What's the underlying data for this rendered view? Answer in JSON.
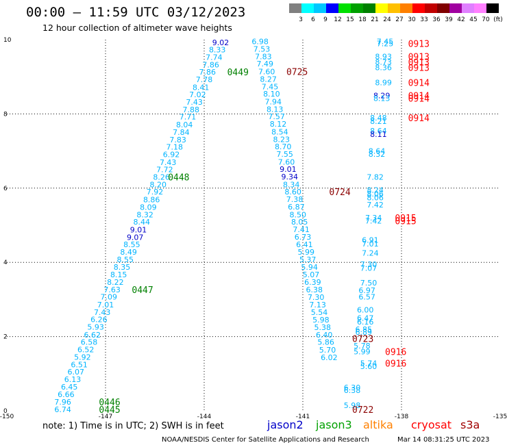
{
  "title": "00:00 – 11:59 UTC 03/12/2023",
  "subtitle": "12 hour collection of altimeter wave heights",
  "colorbar": {
    "labels": [
      "3",
      "6",
      "9",
      "12",
      "15",
      "18",
      "21",
      "24",
      "27",
      "30",
      "33",
      "36",
      "39",
      "42",
      "45",
      "70",
      "(ft)"
    ],
    "colors": [
      "#808080",
      "#00ffff",
      "#00c8ff",
      "#0000ff",
      "#00e000",
      "#00a000",
      "#008000",
      "#ffff00",
      "#ffc000",
      "#ff8000",
      "#ff0000",
      "#c00000",
      "#800000",
      "#a000a0",
      "#e080ff",
      "#ff80ff",
      "#000000"
    ]
  },
  "note": "note:  1) Time is in UTC; 2) SWH is in feet",
  "legend": [
    {
      "name": "jason2",
      "color": "#0000c8"
    },
    {
      "name": "jason3",
      "color": "#00a000"
    },
    {
      "name": "altika",
      "color": "#ff8000"
    },
    {
      "name": "cryosat",
      "color": "#ff0000"
    },
    {
      "name": "s3a",
      "color": "#a00000"
    }
  ],
  "credit_left": "NOAA/NESDIS Center for Satellite Applications and Research",
  "credit_right": "Mar 14 08:31:25 UTC 2023",
  "chart_data": {
    "type": "scatter",
    "xlim": [
      -150,
      -135
    ],
    "ylim": [
      0,
      10
    ],
    "xticks": [
      "-150",
      "-147",
      "-144",
      "-141",
      "-138",
      "-135"
    ],
    "xtick_values": [
      -150,
      -147,
      -144,
      -141,
      -138,
      -135
    ],
    "yticks": [
      "0",
      "2",
      "4",
      "6",
      "8",
      "10"
    ],
    "ytick_values": [
      0,
      2,
      4,
      6,
      8,
      10
    ],
    "grid": "dotted",
    "colors": {
      "c": "#00b4ff",
      "b": "#0000c8"
    },
    "points": [
      {
        "x": -148.3,
        "y": 0.04,
        "v": "6.74",
        "c": "c"
      },
      {
        "x": -148.3,
        "y": 0.24,
        "v": "7.96",
        "c": "c"
      },
      {
        "x": -148.2,
        "y": 0.44,
        "v": "6.66",
        "c": "c"
      },
      {
        "x": -148.1,
        "y": 0.65,
        "v": "6.45",
        "c": "c"
      },
      {
        "x": -148.0,
        "y": 0.85,
        "v": "6.13",
        "c": "c"
      },
      {
        "x": -147.9,
        "y": 1.05,
        "v": "6.07",
        "c": "c"
      },
      {
        "x": -147.8,
        "y": 1.25,
        "v": "6.51",
        "c": "c"
      },
      {
        "x": -147.7,
        "y": 1.45,
        "v": "5.92",
        "c": "c"
      },
      {
        "x": -147.6,
        "y": 1.65,
        "v": "6.52",
        "c": "c"
      },
      {
        "x": -147.5,
        "y": 1.85,
        "v": "6.58",
        "c": "c"
      },
      {
        "x": -147.4,
        "y": 2.05,
        "v": "6.62",
        "c": "c"
      },
      {
        "x": -147.3,
        "y": 2.26,
        "v": "5.93",
        "c": "c"
      },
      {
        "x": -147.2,
        "y": 2.46,
        "v": "6.26",
        "c": "c"
      },
      {
        "x": -147.1,
        "y": 2.66,
        "v": "7.43",
        "c": "c"
      },
      {
        "x": -147.0,
        "y": 2.86,
        "v": "7.01",
        "c": "c"
      },
      {
        "x": -146.9,
        "y": 3.07,
        "v": "7.09",
        "c": "c"
      },
      {
        "x": -146.8,
        "y": 3.27,
        "v": "7.63",
        "c": "c"
      },
      {
        "x": -146.7,
        "y": 3.47,
        "v": "8.22",
        "c": "c"
      },
      {
        "x": -146.6,
        "y": 3.67,
        "v": "8.15",
        "c": "c"
      },
      {
        "x": -146.5,
        "y": 3.87,
        "v": "8.35",
        "c": "c"
      },
      {
        "x": -146.4,
        "y": 4.08,
        "v": "8.55",
        "c": "c"
      },
      {
        "x": -146.3,
        "y": 4.28,
        "v": "8.49",
        "c": "c"
      },
      {
        "x": -146.2,
        "y": 4.48,
        "v": "8.55",
        "c": "c"
      },
      {
        "x": -146.1,
        "y": 4.68,
        "v": "9.07",
        "c": "b"
      },
      {
        "x": -146.0,
        "y": 4.88,
        "v": "9.01",
        "c": "b"
      },
      {
        "x": -145.9,
        "y": 5.09,
        "v": "8.44",
        "c": "c"
      },
      {
        "x": -145.8,
        "y": 5.29,
        "v": "8.32",
        "c": "c"
      },
      {
        "x": -145.7,
        "y": 5.49,
        "v": "8.09",
        "c": "c"
      },
      {
        "x": -145.6,
        "y": 5.69,
        "v": "8.86",
        "c": "c"
      },
      {
        "x": -145.5,
        "y": 5.9,
        "v": "7.92",
        "c": "c"
      },
      {
        "x": -145.4,
        "y": 6.1,
        "v": "8.20",
        "c": "c"
      },
      {
        "x": -145.3,
        "y": 6.3,
        "v": "8.26",
        "c": "c"
      },
      {
        "x": -145.2,
        "y": 6.5,
        "v": "7.72",
        "c": "c"
      },
      {
        "x": -145.1,
        "y": 6.7,
        "v": "7.43",
        "c": "c"
      },
      {
        "x": -145.0,
        "y": 6.91,
        "v": "6.92",
        "c": "c"
      },
      {
        "x": -144.9,
        "y": 7.11,
        "v": "7.18",
        "c": "c"
      },
      {
        "x": -144.8,
        "y": 7.31,
        "v": "7.83",
        "c": "c"
      },
      {
        "x": -144.7,
        "y": 7.51,
        "v": "7.84",
        "c": "c"
      },
      {
        "x": -144.6,
        "y": 7.71,
        "v": "8.04",
        "c": "c"
      },
      {
        "x": -144.5,
        "y": 7.92,
        "v": "7.71",
        "c": "c"
      },
      {
        "x": -144.4,
        "y": 8.12,
        "v": "7.88",
        "c": "c"
      },
      {
        "x": -144.3,
        "y": 8.32,
        "v": "7.43",
        "c": "c"
      },
      {
        "x": -144.2,
        "y": 8.52,
        "v": "7.02",
        "c": "c"
      },
      {
        "x": -144.1,
        "y": 8.72,
        "v": "8.41",
        "c": "c"
      },
      {
        "x": -144.0,
        "y": 8.93,
        "v": "7.78",
        "c": "c"
      },
      {
        "x": -143.9,
        "y": 9.13,
        "v": "7.86",
        "c": "c"
      },
      {
        "x": -143.8,
        "y": 9.33,
        "v": "7.86",
        "c": "c"
      },
      {
        "x": -143.7,
        "y": 9.53,
        "v": "7.74",
        "c": "c"
      },
      {
        "x": -143.6,
        "y": 9.73,
        "v": "8.33",
        "c": "c"
      },
      {
        "x": -143.5,
        "y": 9.93,
        "v": "9.02",
        "c": "b"
      },
      {
        "x": -142.3,
        "y": 9.95,
        "v": "6.98",
        "c": "c"
      },
      {
        "x": -142.25,
        "y": 9.75,
        "v": "7.53",
        "c": "c"
      },
      {
        "x": -142.2,
        "y": 9.55,
        "v": "7.83",
        "c": "c"
      },
      {
        "x": -142.15,
        "y": 9.35,
        "v": "7.49",
        "c": "c"
      },
      {
        "x": -142.1,
        "y": 9.14,
        "v": "7.60",
        "c": "c"
      },
      {
        "x": -142.05,
        "y": 8.94,
        "v": "8.27",
        "c": "c"
      },
      {
        "x": -142.0,
        "y": 8.74,
        "v": "7.45",
        "c": "c"
      },
      {
        "x": -141.95,
        "y": 8.54,
        "v": "8.10",
        "c": "c"
      },
      {
        "x": -141.9,
        "y": 8.33,
        "v": "7.94",
        "c": "c"
      },
      {
        "x": -141.85,
        "y": 8.13,
        "v": "8.13",
        "c": "c"
      },
      {
        "x": -141.8,
        "y": 7.93,
        "v": "7.57",
        "c": "c"
      },
      {
        "x": -141.75,
        "y": 7.73,
        "v": "8.12",
        "c": "c"
      },
      {
        "x": -141.7,
        "y": 7.52,
        "v": "8.54",
        "c": "c"
      },
      {
        "x": -141.65,
        "y": 7.32,
        "v": "8.23",
        "c": "c"
      },
      {
        "x": -141.6,
        "y": 7.12,
        "v": "8.70",
        "c": "c"
      },
      {
        "x": -141.55,
        "y": 6.92,
        "v": "7.55",
        "c": "c"
      },
      {
        "x": -141.5,
        "y": 6.71,
        "v": "7.60",
        "c": "c"
      },
      {
        "x": -141.45,
        "y": 6.51,
        "v": "9.01",
        "c": "b"
      },
      {
        "x": -141.4,
        "y": 6.31,
        "v": "9.34",
        "c": "b"
      },
      {
        "x": -141.35,
        "y": 6.1,
        "v": "8.34",
        "c": "c"
      },
      {
        "x": -141.3,
        "y": 5.9,
        "v": "8.60",
        "c": "c"
      },
      {
        "x": -141.25,
        "y": 5.7,
        "v": "7.38",
        "c": "c"
      },
      {
        "x": -141.2,
        "y": 5.5,
        "v": "6.87",
        "c": "c"
      },
      {
        "x": -141.15,
        "y": 5.29,
        "v": "8.50",
        "c": "c"
      },
      {
        "x": -141.1,
        "y": 5.09,
        "v": "8.05",
        "c": "c"
      },
      {
        "x": -141.05,
        "y": 4.89,
        "v": "7.41",
        "c": "c"
      },
      {
        "x": -141.0,
        "y": 4.69,
        "v": "6.73",
        "c": "c"
      },
      {
        "x": -140.95,
        "y": 4.48,
        "v": "6.41",
        "c": "c"
      },
      {
        "x": -140.9,
        "y": 4.28,
        "v": "5.99",
        "c": "c"
      },
      {
        "x": -140.85,
        "y": 4.08,
        "v": "5.37",
        "c": "c"
      },
      {
        "x": -140.8,
        "y": 3.87,
        "v": "5.94",
        "c": "c"
      },
      {
        "x": -140.75,
        "y": 3.67,
        "v": "5.07",
        "c": "c"
      },
      {
        "x": -140.7,
        "y": 3.47,
        "v": "6.39",
        "c": "c"
      },
      {
        "x": -140.65,
        "y": 3.27,
        "v": "6.38",
        "c": "c"
      },
      {
        "x": -140.6,
        "y": 3.06,
        "v": "7.30",
        "c": "c"
      },
      {
        "x": -140.55,
        "y": 2.86,
        "v": "7.13",
        "c": "c"
      },
      {
        "x": -140.5,
        "y": 2.66,
        "v": "5.54",
        "c": "c"
      },
      {
        "x": -140.45,
        "y": 2.45,
        "v": "5.98",
        "c": "c"
      },
      {
        "x": -140.4,
        "y": 2.25,
        "v": "5.38",
        "c": "c"
      },
      {
        "x": -140.35,
        "y": 2.05,
        "v": "6.40",
        "c": "c"
      },
      {
        "x": -140.3,
        "y": 1.85,
        "v": "5.86",
        "c": "c"
      },
      {
        "x": -140.25,
        "y": 1.64,
        "v": "5.70",
        "c": "c"
      },
      {
        "x": -140.2,
        "y": 1.44,
        "v": "6.02",
        "c": "c"
      },
      {
        "x": -138.5,
        "y": 9.95,
        "v": "7.45",
        "c": "c"
      },
      {
        "x": -138.5,
        "y": 9.9,
        "v": "7.25",
        "c": "c"
      },
      {
        "x": -138.55,
        "y": 9.55,
        "v": "8.93",
        "c": "c"
      },
      {
        "x": -138.55,
        "y": 9.4,
        "v": "8.73",
        "c": "c"
      },
      {
        "x": -138.55,
        "y": 9.25,
        "v": "8.36",
        "c": "c"
      },
      {
        "x": -138.55,
        "y": 8.85,
        "v": "8.99",
        "c": "c"
      },
      {
        "x": -138.6,
        "y": 8.5,
        "v": "8.29",
        "c": "b"
      },
      {
        "x": -138.6,
        "y": 8.42,
        "v": "8.13",
        "c": "c"
      },
      {
        "x": -138.7,
        "y": 7.9,
        "v": "8.48",
        "c": "c"
      },
      {
        "x": -138.7,
        "y": 7.8,
        "v": "8.21",
        "c": "c"
      },
      {
        "x": -138.7,
        "y": 7.55,
        "v": "8.64",
        "c": "c"
      },
      {
        "x": -138.7,
        "y": 7.45,
        "v": "8.11",
        "c": "b"
      },
      {
        "x": -138.75,
        "y": 7.0,
        "v": "8.64",
        "c": "c"
      },
      {
        "x": -138.75,
        "y": 6.92,
        "v": "8.32",
        "c": "c"
      },
      {
        "x": -138.8,
        "y": 6.3,
        "v": "7.82",
        "c": "c"
      },
      {
        "x": -138.8,
        "y": 5.95,
        "v": "8.24",
        "c": "c"
      },
      {
        "x": -138.8,
        "y": 5.85,
        "v": "8.06",
        "c": "c"
      },
      {
        "x": -138.8,
        "y": 5.75,
        "v": "8.06",
        "c": "c"
      },
      {
        "x": -138.8,
        "y": 5.55,
        "v": "7.42",
        "c": "c"
      },
      {
        "x": -138.85,
        "y": 5.2,
        "v": "7.34",
        "c": "c"
      },
      {
        "x": -138.85,
        "y": 5.12,
        "v": "7.42",
        "c": "c"
      },
      {
        "x": -138.95,
        "y": 4.6,
        "v": "6.91",
        "c": "c"
      },
      {
        "x": -138.95,
        "y": 4.5,
        "v": "7.01",
        "c": "c"
      },
      {
        "x": -138.95,
        "y": 4.25,
        "v": "7.24",
        "c": "c"
      },
      {
        "x": -139.0,
        "y": 3.95,
        "v": "7.30",
        "c": "c"
      },
      {
        "x": -139.0,
        "y": 3.85,
        "v": "7.07",
        "c": "c"
      },
      {
        "x": -139.0,
        "y": 3.45,
        "v": "7.50",
        "c": "c"
      },
      {
        "x": -139.05,
        "y": 3.25,
        "v": "6.97",
        "c": "c"
      },
      {
        "x": -139.05,
        "y": 3.07,
        "v": "6.57",
        "c": "c"
      },
      {
        "x": -139.1,
        "y": 2.72,
        "v": "6.00",
        "c": "c"
      },
      {
        "x": -139.1,
        "y": 2.5,
        "v": "6.47",
        "c": "c"
      },
      {
        "x": -139.1,
        "y": 2.4,
        "v": "6.16",
        "c": "c"
      },
      {
        "x": -139.15,
        "y": 2.2,
        "v": "6.85",
        "c": "c"
      },
      {
        "x": -139.15,
        "y": 2.12,
        "v": "6.89",
        "c": "c"
      },
      {
        "x": -139.2,
        "y": 1.75,
        "v": "5.78",
        "c": "c"
      },
      {
        "x": -139.2,
        "y": 1.6,
        "v": "5.99",
        "c": "c"
      },
      {
        "x": -139.0,
        "y": 1.28,
        "v": "5.74",
        "c": "c"
      },
      {
        "x": -139.0,
        "y": 1.2,
        "v": "5.60",
        "c": "c"
      },
      {
        "x": -139.5,
        "y": 0.63,
        "v": "6.30",
        "c": "c"
      },
      {
        "x": -139.5,
        "y": 0.55,
        "v": "6.38",
        "c": "c"
      },
      {
        "x": -139.5,
        "y": 0.15,
        "v": "5.98",
        "c": "c"
      }
    ],
    "pass_labels": [
      {
        "x": -147.2,
        "y": 0.04,
        "t": "0445",
        "c": "#008000"
      },
      {
        "x": -147.2,
        "y": 0.24,
        "t": "0446",
        "c": "#008000"
      },
      {
        "x": -146.2,
        "y": 3.27,
        "t": "0447",
        "c": "#008000"
      },
      {
        "x": -145.1,
        "y": 6.3,
        "t": "0448",
        "c": "#008000"
      },
      {
        "x": -143.3,
        "y": 9.13,
        "t": "0449",
        "c": "#008000"
      },
      {
        "x": -141.5,
        "y": 9.14,
        "t": "0725",
        "c": "#8b0000"
      },
      {
        "x": -140.2,
        "y": 5.9,
        "t": "0724",
        "c": "#8b0000"
      },
      {
        "x": -139.5,
        "y": 1.95,
        "t": "0723",
        "c": "#8b0000"
      },
      {
        "x": -139.5,
        "y": 0.04,
        "t": "0722",
        "c": "#8b0000"
      },
      {
        "x": -137.8,
        "y": 9.9,
        "t": "0913",
        "c": "#ff0000"
      },
      {
        "x": -137.8,
        "y": 9.55,
        "t": "0913",
        "c": "#ff0000"
      },
      {
        "x": -137.8,
        "y": 9.4,
        "t": "0913",
        "c": "#ff0000"
      },
      {
        "x": -137.8,
        "y": 9.25,
        "t": "0913",
        "c": "#ff0000"
      },
      {
        "x": -137.8,
        "y": 8.85,
        "t": "0914",
        "c": "#ff0000"
      },
      {
        "x": -137.8,
        "y": 8.5,
        "t": "0914",
        "c": "#ff0000"
      },
      {
        "x": -137.8,
        "y": 8.42,
        "t": "0914",
        "c": "#ff0000"
      },
      {
        "x": -137.8,
        "y": 7.9,
        "t": "0914",
        "c": "#ff0000"
      },
      {
        "x": -138.2,
        "y": 5.2,
        "t": "0915",
        "c": "#ff0000"
      },
      {
        "x": -138.2,
        "y": 5.12,
        "t": "0915",
        "c": "#ff0000"
      },
      {
        "x": -138.5,
        "y": 1.6,
        "t": "0916",
        "c": "#ff0000"
      },
      {
        "x": -138.5,
        "y": 1.28,
        "t": "0916",
        "c": "#ff0000"
      }
    ]
  }
}
